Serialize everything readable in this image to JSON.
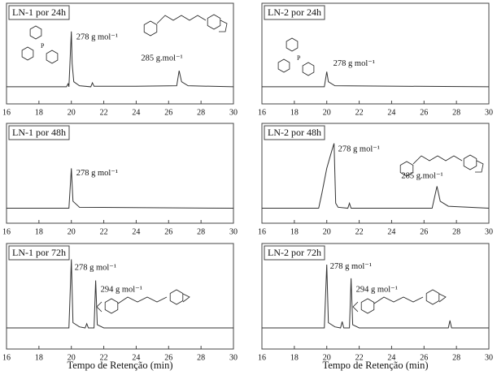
{
  "chart_data": [
    {
      "type": "line",
      "title": "LN-1 por 24h",
      "color": "#333333",
      "xlim": [
        16,
        30
      ],
      "xticks": [
        16,
        18,
        20,
        22,
        24,
        26,
        28,
        30
      ],
      "ylim": [
        0,
        100
      ],
      "x": [
        16,
        19.7,
        19.8,
        19.85,
        20.0,
        20.05,
        20.15,
        20.5,
        21.2,
        21.3,
        21.4,
        24,
        26.5,
        26.65,
        26.8,
        27.2,
        30
      ],
      "values": [
        17,
        17,
        20,
        17,
        72,
        40,
        22,
        18,
        17,
        21,
        17.5,
        17.5,
        18,
        33,
        22,
        18,
        17
      ],
      "annotations": [
        "278 g mol⁻¹",
        "285 g.mol⁻¹"
      ]
    },
    {
      "type": "line",
      "title": "LN-2 por 24h",
      "color": "#333333",
      "xlim": [
        16,
        30
      ],
      "xticks": [
        16,
        18,
        20,
        22,
        24,
        26,
        28,
        30
      ],
      "ylim": [
        0,
        100
      ],
      "x": [
        16,
        19.85,
        20.0,
        20.1,
        20.5,
        30
      ],
      "values": [
        17,
        17,
        32,
        22,
        18,
        17
      ],
      "annotations": [
        "278 g mol⁻¹"
      ]
    },
    {
      "type": "line",
      "title": "LN-1 por 48h",
      "color": "#333333",
      "xlim": [
        16,
        30
      ],
      "xticks": [
        16,
        18,
        20,
        22,
        24,
        26,
        28,
        30
      ],
      "ylim": [
        0,
        100
      ],
      "x": [
        16,
        19.85,
        20.0,
        20.1,
        20.5,
        30
      ],
      "values": [
        15,
        15,
        55,
        22,
        16,
        15
      ],
      "annotations": [
        "278 g mol⁻¹"
      ]
    },
    {
      "type": "line",
      "title": "LN-2 por 48h",
      "color": "#333333",
      "xlim": [
        16,
        30
      ],
      "xticks": [
        16,
        18,
        20,
        22,
        24,
        26,
        28,
        30
      ],
      "ylim": [
        0,
        100
      ],
      "x": [
        16,
        19.5,
        19.7,
        20.0,
        20.3,
        20.45,
        20.55,
        20.7,
        21.3,
        21.4,
        21.5,
        26.5,
        26.8,
        27.0,
        27.5,
        30
      ],
      "values": [
        15,
        15,
        30,
        55,
        72,
        80,
        20,
        16,
        15,
        20,
        15,
        15,
        37,
        22,
        17,
        15
      ],
      "annotations": [
        "278 g mol⁻¹",
        "285 g.mol⁻¹"
      ]
    },
    {
      "type": "line",
      "title": "LN-1 por 72h",
      "color": "#333333",
      "xlim": [
        16,
        30
      ],
      "xticks": [
        16,
        18,
        20,
        22,
        24,
        26,
        28,
        30
      ],
      "ylim": [
        0,
        100
      ],
      "xlabel": "Tempo de Retenção (min)",
      "x": [
        16,
        19.85,
        20.0,
        20.1,
        20.5,
        20.85,
        20.95,
        21.05,
        21.4,
        21.5,
        21.6,
        22,
        30
      ],
      "values": [
        20,
        20,
        85,
        25,
        21,
        20,
        24,
        20,
        20,
        65,
        23,
        20,
        20
      ],
      "annotations": [
        "278 g mol⁻¹",
        "294 g mol⁻¹"
      ]
    },
    {
      "type": "line",
      "title": "LN-2 por 72h",
      "color": "#333333",
      "xlim": [
        16,
        30
      ],
      "xticks": [
        16,
        18,
        20,
        22,
        24,
        26,
        28,
        30
      ],
      "ylim": [
        0,
        100
      ],
      "xlabel": "Tempo de Retenção (min)",
      "x": [
        16,
        19.85,
        20.0,
        20.1,
        20.5,
        20.85,
        20.95,
        21.05,
        21.4,
        21.5,
        21.6,
        22,
        27.5,
        27.6,
        27.7,
        30
      ],
      "values": [
        20,
        20,
        80,
        25,
        21,
        20,
        26,
        20,
        20,
        67,
        23,
        20,
        20,
        27,
        20,
        20
      ],
      "annotations": [
        "278 g mol⁻¹",
        "294 g mol⁻¹"
      ]
    }
  ]
}
